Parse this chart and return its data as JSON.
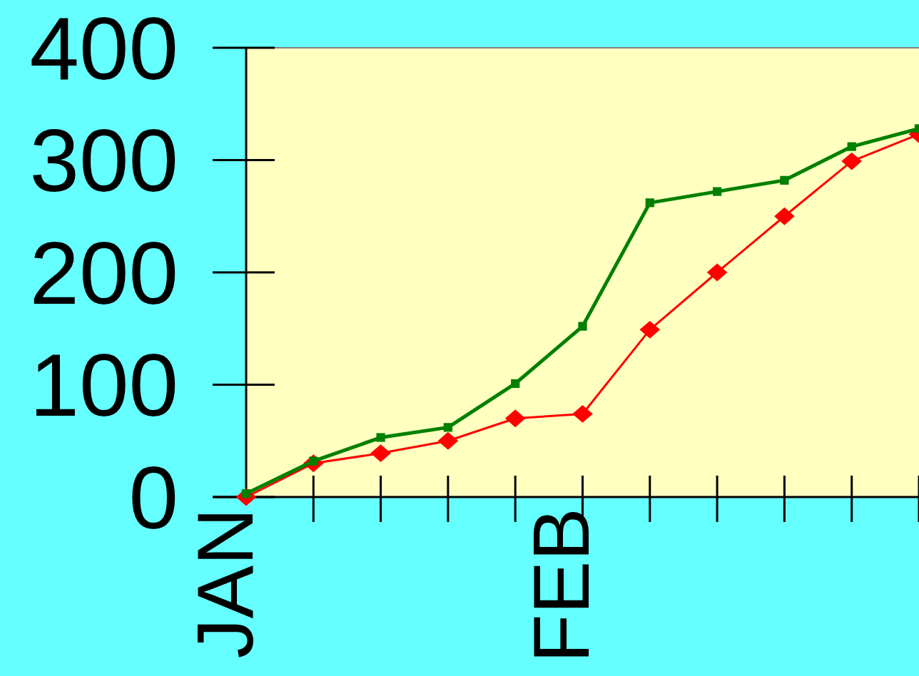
{
  "chart_data": {
    "type": "line",
    "categories": [
      "JAN",
      null,
      null,
      null,
      null,
      "FEB",
      null,
      null,
      null,
      null,
      null
    ],
    "series": [
      {
        "color": "#008000",
        "marker": "square",
        "values": [
          3,
          32,
          53,
          62,
          101,
          152,
          262,
          272,
          282,
          312,
          328
        ]
      },
      {
        "color": "#ff0000",
        "marker": "diamond",
        "values": [
          0,
          30,
          39,
          50,
          70,
          74,
          149,
          200,
          250,
          299,
          323
        ]
      }
    ],
    "ylim": [
      0,
      400
    ],
    "yticks": [
      0,
      100,
      200,
      300,
      400
    ],
    "grid": false,
    "line_style": "solid"
  }
}
